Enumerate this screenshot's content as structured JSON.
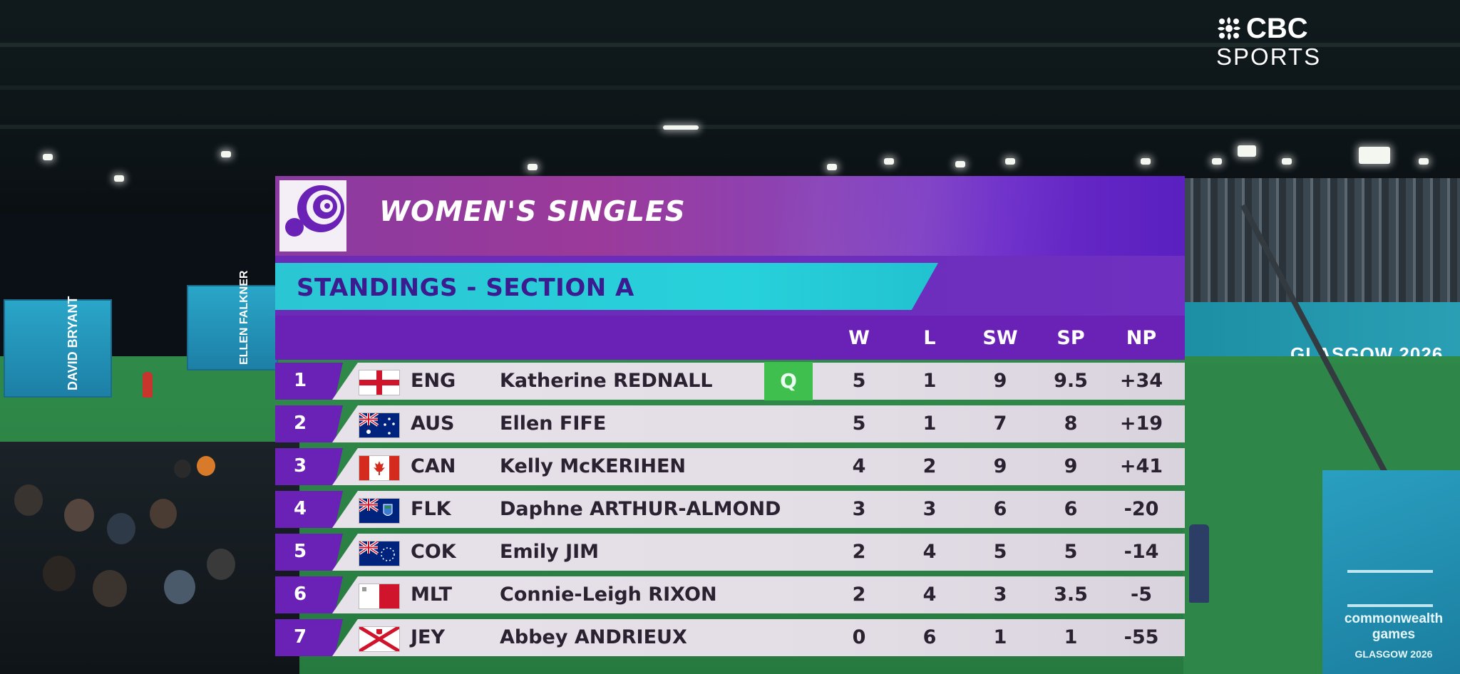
{
  "broadcaster": {
    "line1": "CBC",
    "line2": "SPORTS"
  },
  "graphic": {
    "title": "WOMEN'S SINGLES",
    "subtitle": "STANDINGS - SECTION A",
    "columns": [
      "W",
      "L",
      "SW",
      "SP",
      "NP"
    ],
    "qualified_color": "#3fbf4d",
    "accent_purple": "#6a22b6",
    "accent_cyan": "#27d1db",
    "rows": [
      {
        "rank": "1",
        "flag": "england-flag",
        "code": "ENG",
        "name": "Katherine REDNALL",
        "qualified": "Q",
        "W": "5",
        "L": "1",
        "SW": "9",
        "SP": "9.5",
        "NP": "+34"
      },
      {
        "rank": "2",
        "flag": "australia-flag",
        "code": "AUS",
        "name": "Ellen FIFE",
        "qualified": "",
        "W": "5",
        "L": "1",
        "SW": "7",
        "SP": "8",
        "NP": "+19"
      },
      {
        "rank": "3",
        "flag": "canada-flag",
        "code": "CAN",
        "name": "Kelly McKERIHEN",
        "qualified": "",
        "W": "4",
        "L": "2",
        "SW": "9",
        "SP": "9",
        "NP": "+41"
      },
      {
        "rank": "4",
        "flag": "falkland-islands-flag",
        "code": "FLK",
        "name": "Daphne ARTHUR-ALMOND",
        "qualified": "",
        "W": "3",
        "L": "3",
        "SW": "6",
        "SP": "6",
        "NP": "-20"
      },
      {
        "rank": "5",
        "flag": "cook-islands-flag",
        "code": "COK",
        "name": "Emily JIM",
        "qualified": "",
        "W": "2",
        "L": "4",
        "SW": "5",
        "SP": "5",
        "NP": "-14"
      },
      {
        "rank": "6",
        "flag": "malta-flag",
        "code": "MLT",
        "name": "Connie-Leigh RIXON",
        "qualified": "",
        "W": "2",
        "L": "4",
        "SW": "3",
        "SP": "3.5",
        "NP": "-5"
      },
      {
        "rank": "7",
        "flag": "jersey-flag",
        "code": "JEY",
        "name": "Abbey ANDRIEUX",
        "qualified": "",
        "W": "0",
        "L": "6",
        "SW": "1",
        "SP": "1",
        "NP": "-55"
      }
    ]
  },
  "venue": {
    "board_text": "GLASGOW 2026",
    "left_sign_1": "DAVID BRYANT",
    "left_sign_2": "ELLEN FALKNER",
    "kiosk_line1": "commonwealth games",
    "kiosk_line2": "GLASGOW 2026"
  }
}
